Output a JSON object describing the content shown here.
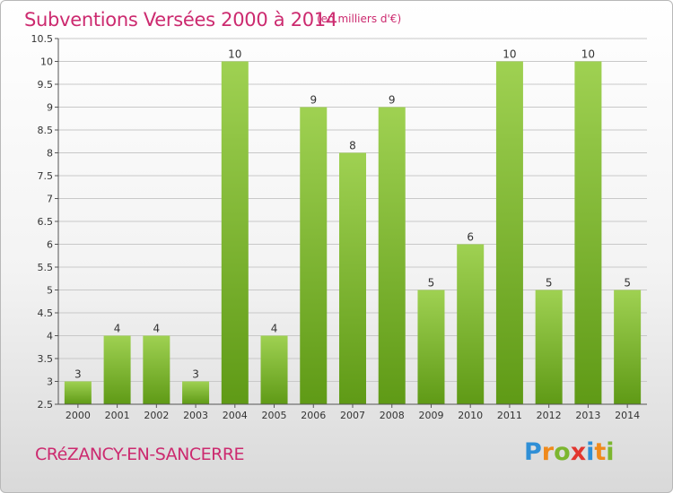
{
  "header": {
    "title": "Subventions Versées 2000 à 2014",
    "unit_note": "(en milliers d'€)"
  },
  "footer": {
    "commune": "CRéZANCY-EN-SANCERRE",
    "logo_text": "Proxiti",
    "logo_letters": [
      {
        "ch": "P",
        "color": "#2f8fd6"
      },
      {
        "ch": "r",
        "color": "#f08a1c"
      },
      {
        "ch": "o",
        "color": "#7cb62f"
      },
      {
        "ch": "x",
        "color": "#e2362f"
      },
      {
        "ch": "i",
        "color": "#2f8fd6"
      },
      {
        "ch": "t",
        "color": "#f08a1c"
      },
      {
        "ch": "i",
        "color": "#7cb62f"
      }
    ]
  },
  "colors": {
    "accent": "#cc2a6f",
    "bar_top": "#9fd152",
    "bar_bottom": "#5f9a16",
    "grid": "#c8c8c8",
    "axis": "#555555"
  },
  "chart_data": {
    "type": "bar",
    "title": "Subventions Versées 2000 à 2014",
    "subtitle": "(en milliers d'€)",
    "xlabel": "",
    "ylabel": "",
    "categories": [
      "2000",
      "2001",
      "2002",
      "2003",
      "2004",
      "2005",
      "2006",
      "2007",
      "2008",
      "2009",
      "2010",
      "2011",
      "2012",
      "2013",
      "2014"
    ],
    "values": [
      3,
      4,
      4,
      3,
      10,
      4,
      9,
      8,
      9,
      5,
      6,
      10,
      5,
      10,
      5
    ],
    "data_labels": [
      "3",
      "4",
      "4",
      "3",
      "10",
      "4",
      "9",
      "8",
      "9",
      "5",
      "6",
      "10",
      "5",
      "10",
      "5"
    ],
    "ylim": [
      2.5,
      10.5
    ],
    "yticks": [
      "2.5",
      "3",
      "3.5",
      "4",
      "4.5",
      "5",
      "5.5",
      "6",
      "6.5",
      "7",
      "7.5",
      "8",
      "8.5",
      "9",
      "9.5",
      "10",
      "10.5"
    ],
    "grid": true,
    "legend": "none"
  }
}
